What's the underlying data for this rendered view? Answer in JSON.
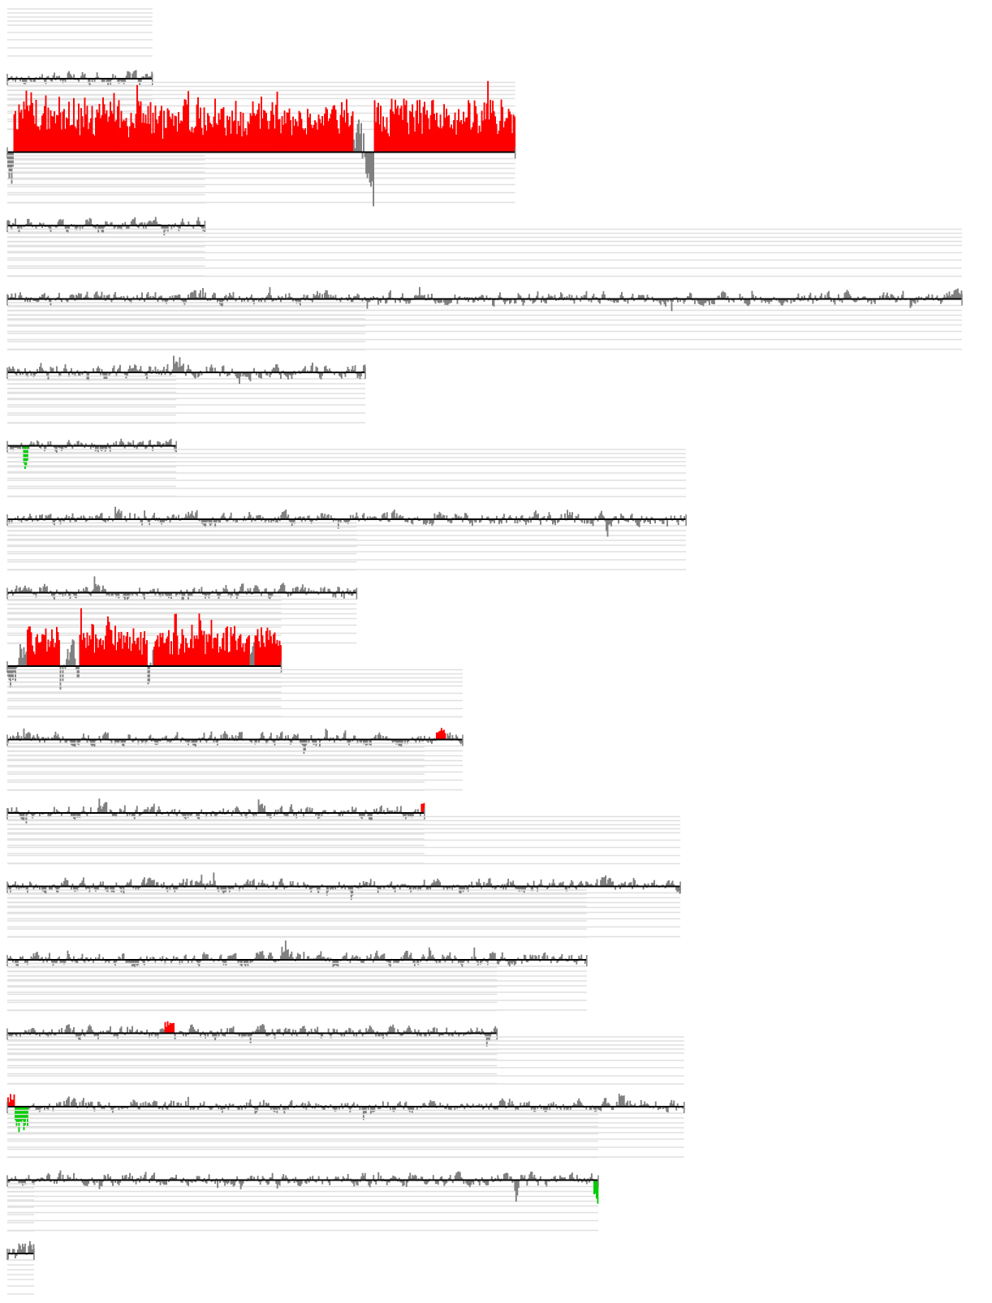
{
  "chart_data": {
    "type": "area",
    "title": "",
    "xlabel": "",
    "ylabel": "",
    "grid": true,
    "legend": "none",
    "colors": {
      "gain": "#ff0000",
      "loss": "#00cc00",
      "neutral": "#808080",
      "baseline": "#000000",
      "grid": "#e0e0e0"
    },
    "tracks": [
      {
        "id": "1",
        "length": 0.152,
        "gain_segments": [],
        "loss_segments": [],
        "amplitude": 0.2
      },
      {
        "id": "2",
        "length": 0.532,
        "gain_segments": [
          [
            0.01,
            0.68
          ],
          [
            0.72,
            1.0
          ]
        ],
        "loss_segments": [],
        "amplitude": 0.85
      },
      {
        "id": "3",
        "length": 0.207,
        "gain_segments": [],
        "loss_segments": [],
        "amplitude": 0.2
      },
      {
        "id": "4",
        "length": 1.0,
        "gain_segments": [],
        "loss_segments": [],
        "amplitude": 0.2
      },
      {
        "id": "5",
        "length": 0.375,
        "gain_segments": [],
        "loss_segments": [],
        "amplitude": 0.22
      },
      {
        "id": "6",
        "length": 0.177,
        "gain_segments": [],
        "loss_segments": [
          [
            0.09,
            0.12
          ]
        ],
        "amplitude": 0.2
      },
      {
        "id": "7",
        "length": 0.711,
        "gain_segments": [],
        "loss_segments": [],
        "amplitude": 0.2
      },
      {
        "id": "8",
        "length": 0.366,
        "gain_segments": [],
        "loss_segments": [],
        "amplitude": 0.2
      },
      {
        "id": "9",
        "length": 0.287,
        "gain_segments": [
          [
            0.07,
            0.19
          ],
          [
            0.26,
            0.51
          ],
          [
            0.53,
            0.88
          ],
          [
            0.9,
            1.0
          ]
        ],
        "loss_segments": [],
        "amplitude": 0.65
      },
      {
        "id": "10",
        "length": 0.477,
        "gain_segments": [
          [
            0.94,
            0.96
          ]
        ],
        "loss_segments": [],
        "amplitude": 0.2
      },
      {
        "id": "11",
        "length": 0.437,
        "gain_segments": [
          [
            0.99,
            1.0
          ]
        ],
        "loss_segments": [],
        "amplitude": 0.2
      },
      {
        "id": "12",
        "length": 0.705,
        "gain_segments": [],
        "loss_segments": [],
        "amplitude": 0.2
      },
      {
        "id": "13",
        "length": 0.607,
        "gain_segments": [],
        "loss_segments": [],
        "amplitude": 0.2
      },
      {
        "id": "14",
        "length": 0.513,
        "gain_segments": [
          [
            0.32,
            0.34
          ]
        ],
        "loss_segments": [],
        "amplitude": 0.2
      },
      {
        "id": "15",
        "length": 0.709,
        "gain_segments": [
          [
            0.0,
            0.01
          ]
        ],
        "loss_segments": [
          [
            0.01,
            0.03
          ]
        ],
        "amplitude": 0.2
      },
      {
        "id": "16",
        "length": 0.619,
        "gain_segments": [],
        "loss_segments": [
          [
            0.99,
            1.0
          ]
        ],
        "amplitude": 0.2
      },
      {
        "id": "17",
        "length": 0.028,
        "gain_segments": [],
        "loss_segments": [],
        "amplitude": 0.3
      }
    ]
  }
}
